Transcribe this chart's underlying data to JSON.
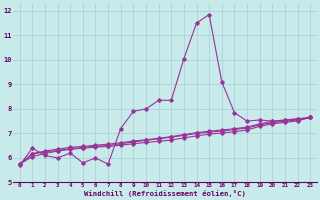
{
  "xlabel": "Windchill (Refroidissement éolien,°C)",
  "background_color": "#c8eaea",
  "grid_color": "#aad4d4",
  "line_color": "#993399",
  "xlim": [
    -0.5,
    23.5
  ],
  "ylim": [
    5,
    12.3
  ],
  "yticks": [
    5,
    6,
    7,
    8,
    9,
    10,
    11,
    12
  ],
  "xticks": [
    0,
    1,
    2,
    3,
    4,
    5,
    6,
    7,
    8,
    9,
    10,
    11,
    12,
    13,
    14,
    15,
    16,
    17,
    18,
    19,
    20,
    21,
    22,
    23
  ],
  "series1": [
    5.7,
    6.4,
    6.1,
    6.0,
    6.2,
    5.8,
    6.0,
    5.75,
    7.2,
    7.9,
    8.0,
    8.35,
    8.35,
    10.05,
    11.5,
    11.85,
    9.1,
    7.85,
    7.5,
    7.55,
    7.5,
    7.55,
    7.6,
    7.65
  ],
  "series2": [
    5.75,
    6.15,
    6.25,
    6.3,
    6.38,
    6.42,
    6.48,
    6.5,
    6.58,
    6.65,
    6.72,
    6.78,
    6.85,
    6.92,
    7.0,
    7.05,
    7.1,
    7.16,
    7.22,
    7.35,
    7.44,
    7.5,
    7.55,
    7.65
  ],
  "series3": [
    5.75,
    6.05,
    6.18,
    6.28,
    6.35,
    6.4,
    6.44,
    6.47,
    6.52,
    6.58,
    6.63,
    6.68,
    6.73,
    6.82,
    6.9,
    6.97,
    7.02,
    7.07,
    7.14,
    7.29,
    7.39,
    7.45,
    7.51,
    7.65
  ],
  "series4": [
    5.75,
    6.18,
    6.28,
    6.36,
    6.43,
    6.47,
    6.52,
    6.56,
    6.62,
    6.69,
    6.74,
    6.8,
    6.87,
    6.95,
    7.03,
    7.09,
    7.14,
    7.19,
    7.26,
    7.39,
    7.49,
    7.53,
    7.58,
    7.65
  ]
}
